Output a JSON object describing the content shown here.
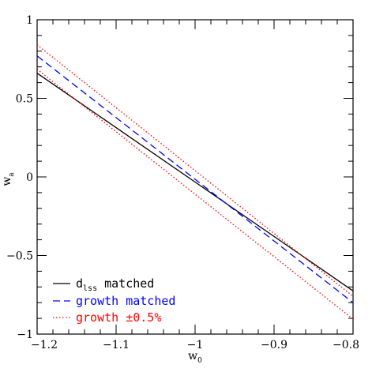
{
  "chart_data": {
    "type": "line",
    "xlabel": "w",
    "xlabel_sub": "0",
    "ylabel": "w",
    "ylabel_sub": "a",
    "xlim": [
      -1.2,
      -0.8
    ],
    "ylim": [
      -1,
      1
    ],
    "x_ticks": [
      -1.2,
      -1.1,
      -1,
      -0.9,
      -0.8
    ],
    "x_tick_labels": [
      "−1.2",
      "−1.1",
      "−1",
      "−0.9",
      "−0.8"
    ],
    "y_ticks": [
      -1,
      -0.5,
      0,
      0.5,
      1
    ],
    "y_tick_labels": [
      "−1",
      "−0.5",
      "0",
      "0.5",
      "1"
    ],
    "grid": false,
    "legend_position": "bottom-left",
    "series": [
      {
        "name": "d matched",
        "name_main": "d",
        "name_sub": "lss",
        "name_rest": " matched",
        "color": "#000000",
        "dash": "solid",
        "x": [
          -1.2,
          -0.8
        ],
        "y": [
          0.66,
          -0.725
        ]
      },
      {
        "name": "growth matched",
        "color": "#0000ff",
        "dash": "dashed",
        "x": [
          -1.2,
          -0.8
        ],
        "y": [
          0.77,
          -0.8
        ]
      },
      {
        "name": "growth ±0.5%",
        "color": "#ff0000",
        "dash": "dotted",
        "x": [
          -1.2,
          -0.8
        ],
        "y": [
          0.84,
          -0.76
        ]
      },
      {
        "name": "",
        "color": "#ff0000",
        "dash": "dotted",
        "x": [
          -1.2,
          -0.8
        ],
        "y": [
          0.685,
          -0.905
        ]
      }
    ]
  }
}
